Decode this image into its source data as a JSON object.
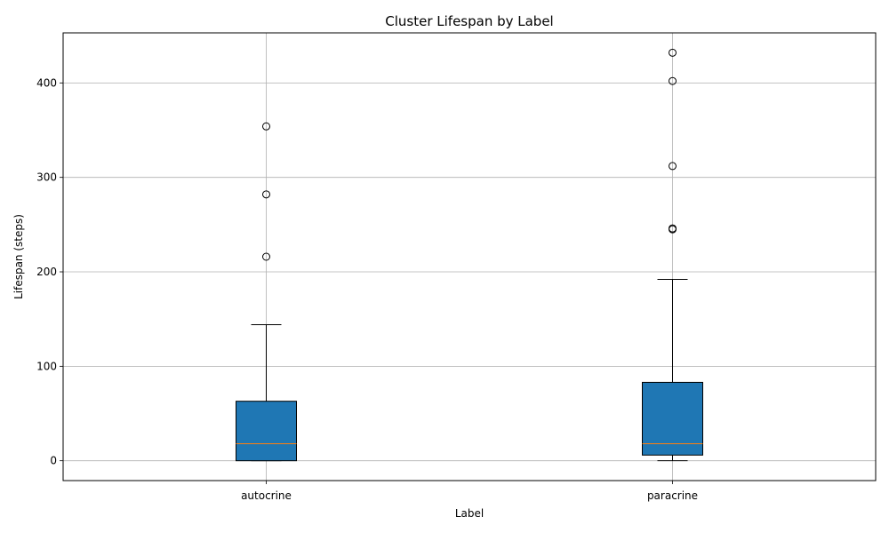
{
  "chart_data": {
    "type": "box",
    "title": "Cluster Lifespan by Label",
    "xlabel": "Label",
    "ylabel": "Lifespan (steps)",
    "ylim": [
      -21,
      453
    ],
    "yticks": [
      0,
      100,
      200,
      300,
      400
    ],
    "grid": true,
    "box_color": "#1f77b4",
    "median_color": "#ff7f0e",
    "categories": [
      "autocrine",
      "paracrine"
    ],
    "boxes": [
      {
        "label": "autocrine",
        "whisker_low": 0,
        "q1": 0,
        "median": 18,
        "q3": 63,
        "whisker_high": 144,
        "outliers": [
          216,
          282,
          354
        ]
      },
      {
        "label": "paracrine",
        "whisker_low": 0,
        "q1": 6,
        "median": 18,
        "q3": 83,
        "whisker_high": 192,
        "outliers": [
          245,
          246,
          312,
          402,
          432
        ]
      }
    ]
  }
}
